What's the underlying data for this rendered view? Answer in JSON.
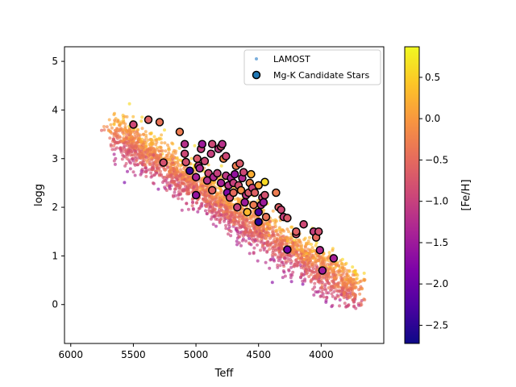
{
  "chart_data": {
    "type": "scatter",
    "title": "",
    "xlabel": "Teff",
    "ylabel": "logg",
    "xlim": [
      6050,
      3500
    ],
    "ylim": [
      5.3,
      -0.8
    ],
    "x_inverted": true,
    "y_inverted": true,
    "xticks": [
      6000,
      5500,
      5000,
      4500,
      4000
    ],
    "yticks": [
      0,
      1,
      2,
      3,
      4,
      5
    ],
    "grid": false,
    "legend_position": "top-right",
    "colorbar": {
      "label": "[Fe/H]",
      "range": [
        -2.72,
        0.87
      ],
      "ticks": [
        0.5,
        0.0,
        -0.5,
        -1.0,
        -1.5,
        -2.0,
        -2.5
      ],
      "tick_labels": [
        "0.5",
        "0.0",
        "−0.5",
        "−1.0",
        "−1.5",
        "−2.0",
        "−2.5"
      ],
      "colormap": "plasma"
    },
    "series": [
      {
        "name": "LAMOST",
        "marker": "small dot",
        "color": "#5b9bd5",
        "description_points": "dense red-giant-branch cloud, colored by [Fe/H]"
      },
      {
        "name": "Mg-K Candidate Stars",
        "marker": "circle, black edge",
        "color": "#1f77b4",
        "points": [
          [
            5500,
            3.7,
            -0.9
          ],
          [
            5380,
            3.8,
            -0.6
          ],
          [
            5290,
            3.75,
            -0.4
          ],
          [
            5260,
            2.92,
            -0.8
          ],
          [
            5130,
            3.55,
            -0.3
          ],
          [
            5090,
            3.1,
            -0.9
          ],
          [
            5090,
            3.3,
            -1.2
          ],
          [
            5080,
            2.93,
            -0.8
          ],
          [
            5050,
            2.75,
            -2.4
          ],
          [
            5000,
            2.62,
            -1.4
          ],
          [
            5000,
            2.25,
            -1.6
          ],
          [
            4990,
            3.0,
            -0.7
          ],
          [
            4980,
            2.85,
            -1.1
          ],
          [
            4970,
            2.8,
            -1.3
          ],
          [
            4960,
            3.2,
            -1.0
          ],
          [
            4950,
            3.3,
            -1.5
          ],
          [
            4930,
            2.95,
            -0.9
          ],
          [
            4910,
            2.55,
            -1.2
          ],
          [
            4900,
            2.7,
            -0.9
          ],
          [
            4880,
            3.1,
            -1.0
          ],
          [
            4870,
            2.35,
            -0.6
          ],
          [
            4870,
            3.3,
            -0.9
          ],
          [
            4860,
            2.62,
            -1.3
          ],
          [
            4830,
            2.7,
            -1.0
          ],
          [
            4820,
            3.2,
            -1.1
          ],
          [
            4800,
            3.25,
            -0.8
          ],
          [
            4800,
            2.5,
            -1.4
          ],
          [
            4790,
            3.3,
            -1.2
          ],
          [
            4780,
            3.0,
            -0.2
          ],
          [
            4760,
            3.05,
            -0.9
          ],
          [
            4760,
            2.65,
            -1.1
          ],
          [
            4750,
            2.3,
            -1.8
          ],
          [
            4740,
            2.45,
            -1.2
          ],
          [
            4730,
            2.2,
            -0.9
          ],
          [
            4720,
            2.6,
            -1.4
          ],
          [
            4700,
            2.5,
            -1.0
          ],
          [
            4700,
            2.3,
            -0.5
          ],
          [
            4690,
            2.68,
            -1.6
          ],
          [
            4680,
            2.85,
            -0.3
          ],
          [
            4670,
            2.0,
            -1.0
          ],
          [
            4660,
            2.45,
            -0.8
          ],
          [
            4650,
            2.9,
            -0.7
          ],
          [
            4640,
            2.35,
            -0.1
          ],
          [
            4630,
            2.6,
            -1.3
          ],
          [
            4620,
            2.72,
            -0.9
          ],
          [
            4610,
            2.1,
            -1.5
          ],
          [
            4600,
            2.25,
            -1.1
          ],
          [
            4590,
            1.9,
            0.3
          ],
          [
            4580,
            2.3,
            -0.7
          ],
          [
            4570,
            2.5,
            -0.2
          ],
          [
            4560,
            2.68,
            0.2
          ],
          [
            4550,
            2.4,
            -1.0
          ],
          [
            4540,
            2.05,
            -0.3
          ],
          [
            4530,
            2.3,
            -0.6
          ],
          [
            4500,
            1.7,
            -2.5
          ],
          [
            4500,
            1.9,
            -2.3
          ],
          [
            4500,
            2.45,
            0.1
          ],
          [
            4480,
            2.05,
            -1.2
          ],
          [
            4470,
            2.2,
            -0.9
          ],
          [
            4460,
            2.1,
            -1.5
          ],
          [
            4450,
            2.52,
            0.6
          ],
          [
            4450,
            2.25,
            -0.8
          ],
          [
            4440,
            1.8,
            -0.4
          ],
          [
            4360,
            2.3,
            -0.3
          ],
          [
            4340,
            2.0,
            -0.6
          ],
          [
            4320,
            1.95,
            -0.9
          ],
          [
            4300,
            1.8,
            -1.0
          ],
          [
            4270,
            1.78,
            -0.7
          ],
          [
            4270,
            1.13,
            -2.0
          ],
          [
            4200,
            1.45,
            -0.8
          ],
          [
            4200,
            1.5,
            -0.6
          ],
          [
            4140,
            1.65,
            -0.9
          ],
          [
            4060,
            1.5,
            -1.0
          ],
          [
            4040,
            1.38,
            -0.5
          ],
          [
            4020,
            1.5,
            -0.8
          ],
          [
            4010,
            1.12,
            -1.3
          ],
          [
            3990,
            0.7,
            -1.5
          ],
          [
            3900,
            0.95,
            -1.4
          ]
        ]
      }
    ]
  }
}
